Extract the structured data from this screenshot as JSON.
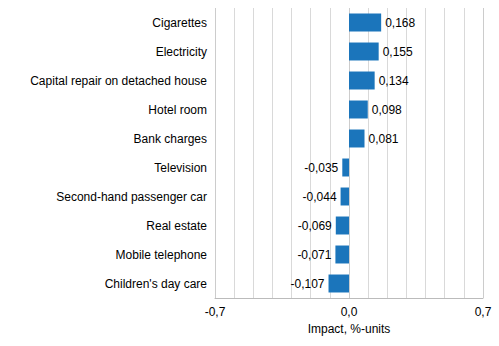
{
  "chart_data": {
    "type": "bar",
    "orientation": "horizontal",
    "categories": [
      "Cigarettes",
      "Electricity",
      "Capital repair on detached house",
      "Hotel room",
      "Bank charges",
      "Television",
      "Second-hand passenger car",
      "Real estate",
      "Mobile telephone",
      "Children's day care"
    ],
    "values": [
      0.168,
      0.155,
      0.134,
      0.098,
      0.081,
      -0.035,
      -0.044,
      -0.069,
      -0.071,
      -0.107
    ],
    "value_labels": [
      "0,168",
      "0,155",
      "0,134",
      "0,098",
      "0,081",
      "-0,035",
      "-0,044",
      "-0,069",
      "-0,071",
      "-0,107"
    ],
    "data_labels": true,
    "color": "#1b75bb",
    "xlabel": "Impact, %-units",
    "xlim": [
      -0.7,
      0.7
    ],
    "xticks": [
      {
        "value": -0.7,
        "label": "-0,7"
      },
      {
        "value": 0,
        "label": "0,0"
      },
      {
        "value": 0.7,
        "label": "0,7"
      }
    ],
    "grid": true
  }
}
